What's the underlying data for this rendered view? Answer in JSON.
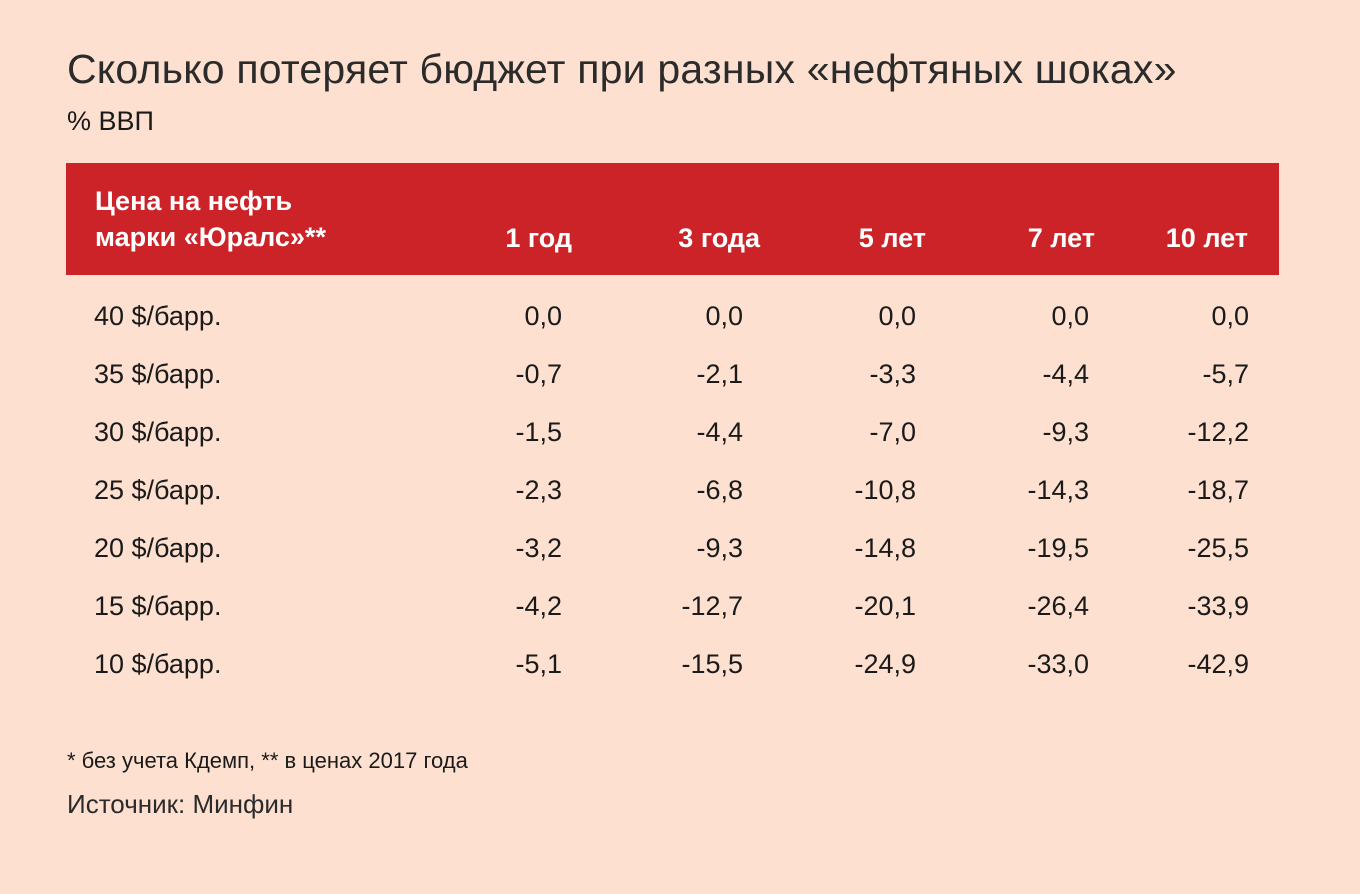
{
  "title": "Сколько потеряет бюджет при разных «нефтяных шоках»",
  "subtitle": "% ВВП",
  "header": {
    "row_label_line1": "Цена на нефть",
    "row_label_line2": "марки «Юралс»**",
    "columns": [
      "1 год",
      "3 года",
      "5 лет",
      "7 лет",
      "10 лет"
    ]
  },
  "colors": {
    "background": "#fde0d0",
    "header": "#cc2328",
    "header_text": "#ffffff"
  },
  "chart_data": {
    "type": "table",
    "title": "Сколько потеряет бюджет при разных «нефтяных шоках»",
    "subtitle": "% ВВП",
    "columns": [
      "1 год",
      "3 года",
      "5 лет",
      "7 лет",
      "10 лет"
    ],
    "rows": [
      {
        "label": "40 $/барр.",
        "values": [
          "0,0",
          "0,0",
          "0,0",
          "0,0",
          "0,0"
        ]
      },
      {
        "label": "35 $/барр.",
        "values": [
          "-0,7",
          "-2,1",
          "-3,3",
          "-4,4",
          "-5,7"
        ]
      },
      {
        "label": "30 $/барр.",
        "values": [
          "-1,5",
          "-4,4",
          "-7,0",
          "-9,3",
          "-12,2"
        ]
      },
      {
        "label": "25 $/барр.",
        "values": [
          "-2,3",
          "-6,8",
          "-10,8",
          "-14,3",
          "-18,7"
        ]
      },
      {
        "label": "20 $/барр.",
        "values": [
          "-3,2",
          "-9,3",
          "-14,8",
          "-19,5",
          "-25,5"
        ]
      },
      {
        "label": "15 $/барр.",
        "values": [
          "-4,2",
          "-12,7",
          "-20,1",
          "-26,4",
          "-33,9"
        ]
      },
      {
        "label": "10 $/барр.",
        "values": [
          "-5,1",
          "-15,5",
          "-24,9",
          "-33,0",
          "-42,9"
        ]
      }
    ]
  },
  "footnote": "* без учета Кдемп, ** в ценах 2017 года",
  "source": "Источник: Минфин"
}
